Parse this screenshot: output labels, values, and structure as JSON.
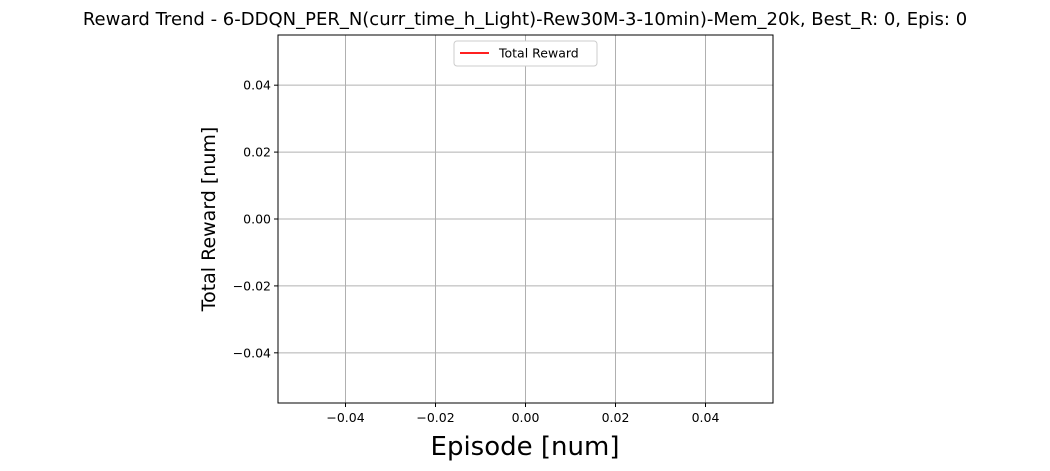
{
  "chart_data": {
    "type": "line",
    "title": "Reward Trend - 6-DDQN_PER_N(curr_time_h_Light)-Rew30M-3-10min)-Mem_20k, Best_R: 0, Epis: 0",
    "xlabel": "Episode [num]",
    "ylabel": "Total Reward [num]",
    "xlim": [
      -0.055,
      0.055
    ],
    "ylim": [
      -0.055,
      0.055
    ],
    "x_ticks": [
      -0.04,
      -0.02,
      0.0,
      0.02,
      0.04
    ],
    "y_ticks": [
      -0.04,
      -0.02,
      0.0,
      0.02,
      0.04
    ],
    "x_tick_labels": [
      "−0.04",
      "−0.02",
      "0.00",
      "0.02",
      "0.04"
    ],
    "y_tick_labels": [
      "−0.04",
      "−0.02",
      "0.00",
      "0.02",
      "0.04"
    ],
    "grid": true,
    "legend_position": "upper center",
    "series": [
      {
        "name": "Total Reward",
        "color": "#ff0000",
        "x": [],
        "y": []
      }
    ]
  }
}
